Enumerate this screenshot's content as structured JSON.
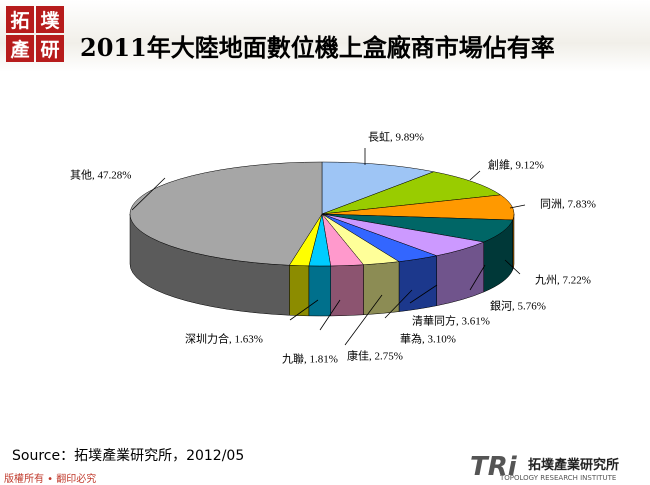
{
  "header": {
    "logo": [
      "拓",
      "墣",
      "產",
      "研"
    ]
  },
  "chart_data": {
    "type": "pie3d",
    "title": "2011年大陸地面數位機上盒廠商市場佔有率",
    "values": [
      9.89,
      9.12,
      7.83,
      7.22,
      5.76,
      3.61,
      3.1,
      2.75,
      1.81,
      1.63,
      47.28
    ],
    "value_labels": [
      "長虹, 9.89%",
      "創維, 9.12%",
      "同洲, 7.83%",
      "九州, 7.22%",
      "銀河, 5.76%",
      "清華同方, 3.61%",
      "華為, 3.10%",
      "康佳, 2.75%",
      "九聯, 1.81%",
      "深圳力合, 1.63%",
      "其他, 47.28%"
    ],
    "colors": [
      "#9ec5f5",
      "#99cc00",
      "#ff9900",
      "#006666",
      "#cc99ff",
      "#3366ff",
      "#ffff99",
      "#ff99cc",
      "#00ccff",
      "#ffff00",
      "#a6a6a6"
    ]
  },
  "footer": {
    "source": "Source：拓墣產業研究所，2012/05",
    "copyright": "版權所有 • 翻印必究",
    "brand_mark": "TRi",
    "brand_name": "拓墣產業研究所",
    "brand_english": "TOPOLOGY RESEARCH INSTITUTE"
  }
}
